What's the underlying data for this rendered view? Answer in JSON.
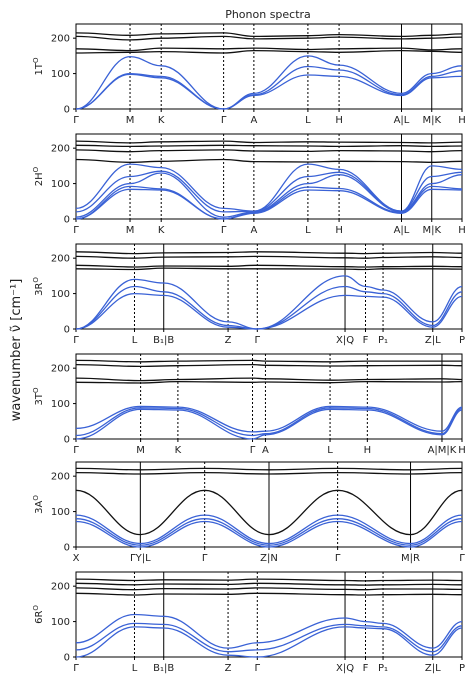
{
  "chart_data": {
    "type": "line",
    "title": "Phonon spectra",
    "ylabel": "wavenumber ν̃ [cm⁻¹]",
    "ylim": [
      0,
      240
    ],
    "yticks": [
      0,
      100,
      200
    ],
    "grid": false,
    "optic_color": "#111111",
    "acoustic_color": "#3a62d6",
    "panels": [
      {
        "label": "1T",
        "label_sup": "O",
        "xticks": [
          "Γ",
          "M",
          "K",
          "Γ",
          "A",
          "L",
          "H",
          "A|L",
          "M|K",
          "H"
        ],
        "ticks_at": [
          0,
          1,
          1.577,
          2.732,
          3.292,
          4.292,
          4.869,
          6.024,
          6.584,
          7.144
        ],
        "solid_at": [
          6.024,
          6.584
        ],
        "optic": [
          [
            215,
            208,
            212,
            215,
            205,
            207,
            210,
            205,
            208,
            212
          ],
          [
            205,
            195,
            200,
            205,
            198,
            200,
            203,
            198,
            200,
            203
          ],
          [
            170,
            165,
            172,
            170,
            172,
            168,
            170,
            172,
            167,
            170
          ],
          [
            158,
            160,
            162,
            158,
            165,
            162,
            160,
            165,
            163,
            160
          ]
        ],
        "acoustic": [
          [
            0,
            148,
            122,
            0,
            44,
            150,
            124,
            44,
            100,
            122
          ],
          [
            0,
            100,
            92,
            0,
            40,
            120,
            110,
            40,
            92,
            108
          ],
          [
            0,
            98,
            88,
            0,
            38,
            96,
            92,
            38,
            88,
            92
          ]
        ]
      },
      {
        "label": "2H",
        "label_sup": "O",
        "xticks": [
          "Γ",
          "M",
          "K",
          "Γ",
          "A",
          "L",
          "H",
          "A|L",
          "M|K",
          "H"
        ],
        "ticks_at": [
          0,
          1,
          1.577,
          2.732,
          3.292,
          4.292,
          4.869,
          6.024,
          6.584,
          7.144
        ],
        "solid_at": [
          6.024,
          6.584
        ],
        "optic": [
          [
            220,
            215,
            218,
            220,
            216,
            218,
            217,
            216,
            215,
            217
          ],
          [
            208,
            205,
            206,
            208,
            207,
            206,
            205,
            207,
            205,
            206
          ],
          [
            195,
            190,
            193,
            195,
            192,
            191,
            193,
            192,
            190,
            193
          ],
          [
            168,
            160,
            163,
            168,
            162,
            161,
            163,
            162,
            160,
            163
          ]
        ],
        "acoustic": [
          [
            30,
            155,
            145,
            30,
            22,
            155,
            140,
            22,
            150,
            140
          ],
          [
            20,
            120,
            135,
            20,
            22,
            120,
            132,
            22,
            120,
            132
          ],
          [
            5,
            100,
            130,
            5,
            20,
            100,
            125,
            20,
            100,
            125
          ],
          [
            0,
            92,
            85,
            0,
            18,
            90,
            86,
            18,
            92,
            85
          ],
          [
            0,
            84,
            82,
            0,
            16,
            82,
            80,
            16,
            84,
            82
          ]
        ]
      },
      {
        "label": "3R",
        "label_sup": "O",
        "xticks": [
          "Γ",
          "L",
          "B₁|B",
          "Z",
          "Γ",
          "X|Q",
          "F",
          "P₁",
          "Z|L",
          "P"
        ],
        "ticks_at": [
          0,
          1,
          1.5,
          2.6,
          3.1,
          4.6,
          4.95,
          5.25,
          6.1,
          6.6
        ],
        "solid_at": [
          1.5,
          4.6,
          6.1
        ],
        "optic": [
          [
            218,
            213,
            215,
            216,
            218,
            214,
            213,
            214,
            216,
            214
          ],
          [
            205,
            200,
            203,
            204,
            205,
            201,
            200,
            202,
            204,
            202
          ],
          [
            180,
            175,
            178,
            177,
            180,
            176,
            175,
            176,
            177,
            176
          ],
          [
            170,
            168,
            172,
            170,
            170,
            169,
            168,
            170,
            170,
            169
          ]
        ],
        "acoustic": [
          [
            0,
            140,
            130,
            20,
            0,
            150,
            120,
            110,
            20,
            120
          ],
          [
            0,
            120,
            105,
            10,
            0,
            120,
            105,
            100,
            10,
            105
          ],
          [
            0,
            100,
            95,
            5,
            0,
            95,
            92,
            90,
            5,
            92
          ]
        ]
      },
      {
        "label": "3T",
        "label_sup": "O",
        "xticks": [
          "Γ",
          "M",
          "K",
          "Γ",
          "A",
          "L",
          "H",
          "A|M|K",
          "H"
        ],
        "ticks_at": [
          0,
          1,
          1.577,
          2.732,
          2.932,
          3.932,
          4.509,
          5.664,
          5.974
        ],
        "solid_at": [
          5.664
        ],
        "optic": [
          [
            222,
            218,
            220,
            222,
            220,
            218,
            220,
            220,
            220
          ],
          [
            210,
            205,
            207,
            210,
            208,
            206,
            207,
            208,
            207
          ],
          [
            172,
            165,
            168,
            172,
            170,
            166,
            168,
            170,
            168
          ],
          [
            160,
            158,
            162,
            160,
            161,
            159,
            162,
            161,
            162
          ]
        ],
        "acoustic": [
          [
            30,
            92,
            90,
            20,
            22,
            92,
            90,
            22,
            90
          ],
          [
            10,
            88,
            86,
            10,
            15,
            88,
            86,
            15,
            86
          ],
          [
            0,
            84,
            82,
            0,
            12,
            84,
            82,
            12,
            82
          ]
        ]
      },
      {
        "label": "3A",
        "label_sup": "O",
        "xticks": [
          "X",
          "ΓY|L",
          "Γ",
          "Z|N",
          "Γ",
          "M|R",
          "Γ"
        ],
        "ticks_at": [
          0,
          0.75,
          1.5,
          2.25,
          3.05,
          3.9,
          4.5
        ],
        "solid_at": [
          0.75,
          2.25,
          3.9
        ],
        "optic": [
          [
            222,
            218,
            222,
            218,
            222,
            218,
            222
          ],
          [
            210,
            206,
            210,
            206,
            210,
            206,
            210
          ],
          [
            160,
            35,
            160,
            35,
            160,
            35,
            160
          ]
        ],
        "acoustic": [
          [
            90,
            10,
            90,
            10,
            90,
            10,
            90
          ],
          [
            80,
            5,
            80,
            5,
            80,
            5,
            80
          ],
          [
            72,
            0,
            72,
            0,
            72,
            0,
            72
          ]
        ]
      },
      {
        "label": "6R",
        "label_sup": "O",
        "xticks": [
          "Γ",
          "L",
          "B₁|B",
          "Z",
          "Γ",
          "X|Q",
          "F",
          "P₁",
          "Z|L",
          "P"
        ],
        "ticks_at": [
          0,
          1,
          1.5,
          2.6,
          3.1,
          4.6,
          4.95,
          5.25,
          6.1,
          6.6
        ],
        "solid_at": [
          1.5,
          4.6,
          6.1
        ],
        "optic": [
          [
            220,
            216,
            218,
            217,
            220,
            216,
            215,
            216,
            217,
            216
          ],
          [
            208,
            204,
            206,
            205,
            208,
            204,
            203,
            204,
            205,
            204
          ],
          [
            195,
            190,
            193,
            192,
            195,
            191,
            190,
            192,
            192,
            191
          ],
          [
            180,
            175,
            178,
            177,
            180,
            176,
            175,
            176,
            177,
            176
          ]
        ],
        "acoustic": [
          [
            40,
            120,
            115,
            25,
            40,
            110,
            100,
            95,
            25,
            100
          ],
          [
            20,
            95,
            92,
            15,
            20,
            92,
            88,
            85,
            15,
            88
          ],
          [
            0,
            85,
            82,
            5,
            0,
            85,
            82,
            80,
            5,
            82
          ]
        ]
      }
    ]
  }
}
